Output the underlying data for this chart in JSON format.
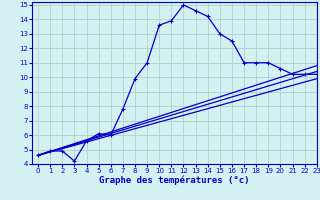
{
  "xlabel": "Graphe des températures (°c)",
  "bg_color": "#d4f0f0",
  "grid_color": "#b0d8d0",
  "line_color": "#0000cc",
  "xlim": [
    -0.5,
    23
  ],
  "ylim": [
    4,
    15.2
  ],
  "xticks": [
    0,
    1,
    2,
    3,
    4,
    5,
    6,
    7,
    8,
    9,
    10,
    11,
    12,
    13,
    14,
    15,
    16,
    17,
    18,
    19,
    20,
    21,
    22,
    23
  ],
  "yticks": [
    4,
    5,
    6,
    7,
    8,
    9,
    10,
    11,
    12,
    13,
    14,
    15
  ],
  "temp_x": [
    0,
    1,
    2,
    3,
    4,
    5,
    6,
    7,
    8,
    9,
    10,
    11,
    12,
    13,
    14,
    15,
    16,
    17,
    18,
    19,
    20,
    21,
    22,
    23
  ],
  "temp_y": [
    4.6,
    4.9,
    4.9,
    4.2,
    5.6,
    6.1,
    6.0,
    7.8,
    9.9,
    11.0,
    13.6,
    13.9,
    15.0,
    14.6,
    14.2,
    13.0,
    12.5,
    11.0,
    11.0,
    11.0,
    10.6,
    10.2,
    10.2,
    10.2
  ],
  "line2_x0": 0,
  "line2_y0": 4.6,
  "line2_x1": 23,
  "line2_y1": 10.4,
  "line3_x0": 0,
  "line3_y0": 4.6,
  "line3_x1": 23,
  "line3_y1": 10.8,
  "line4_x0": 0,
  "line4_y0": 4.6,
  "line4_x1": 23,
  "line4_y1": 9.9
}
